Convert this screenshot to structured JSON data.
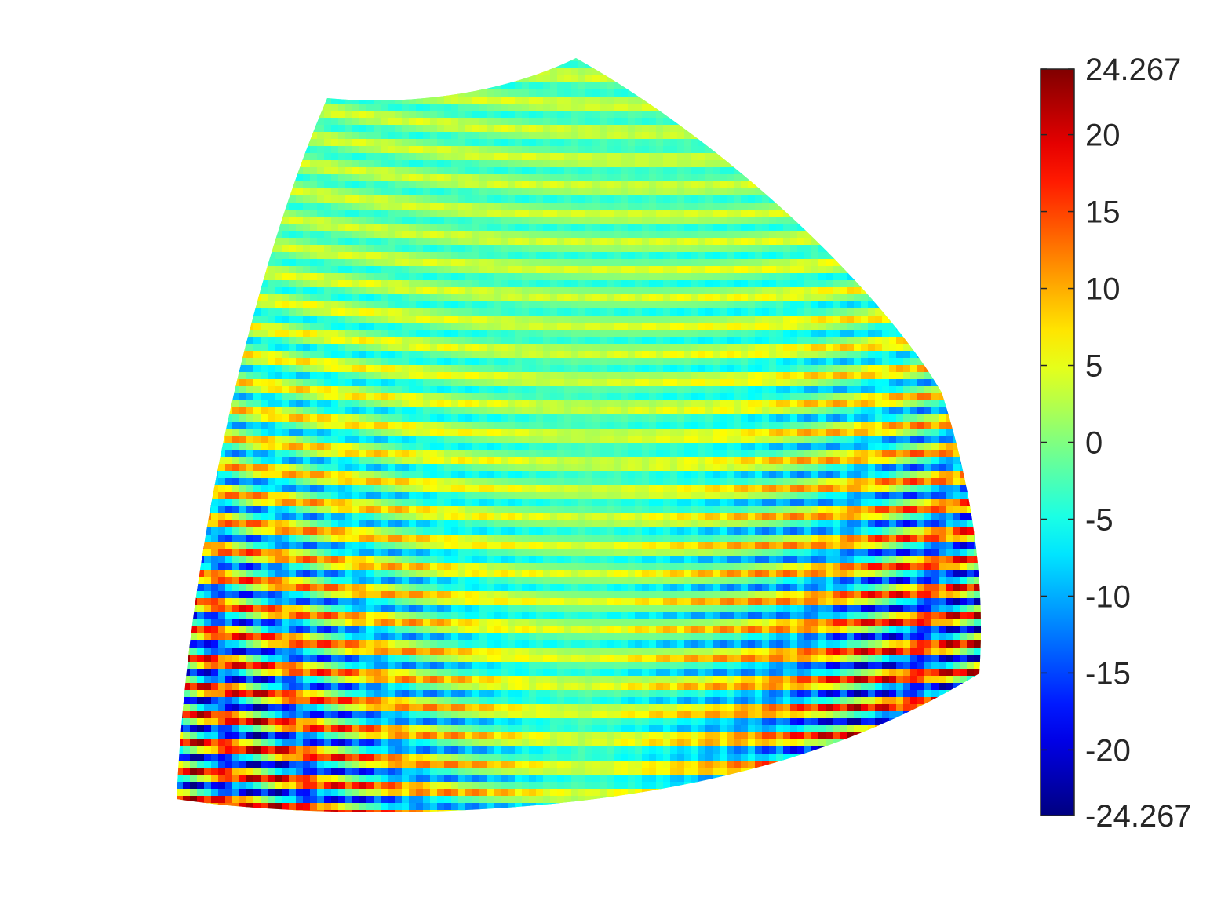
{
  "chart_data": {
    "type": "heatmap",
    "title": "",
    "xlabel": "",
    "ylabel": "",
    "colormap": "jet",
    "clim": [
      -24.267,
      24.267
    ],
    "colorbar": {
      "location": "right",
      "ticks": [
        -24.267,
        -20,
        -15,
        -10,
        -5,
        0,
        5,
        10,
        15,
        20,
        24.267
      ],
      "tick_labels": [
        "-24.267",
        "-20",
        "-15",
        "-10",
        "-5",
        "0",
        "5",
        "10",
        "15",
        "20",
        "24.267"
      ]
    },
    "surface": {
      "shape": "spherical patch",
      "value_range": [
        -24.267,
        24.267
      ],
      "background_value": 0,
      "pattern": "oscillating bands; largest magnitudes at the lower-left and lower-right edges, near zero in the center"
    }
  },
  "colors": {
    "low": "#00008f",
    "mid": "#80ff80",
    "high": "#800000",
    "text": "#262626"
  }
}
